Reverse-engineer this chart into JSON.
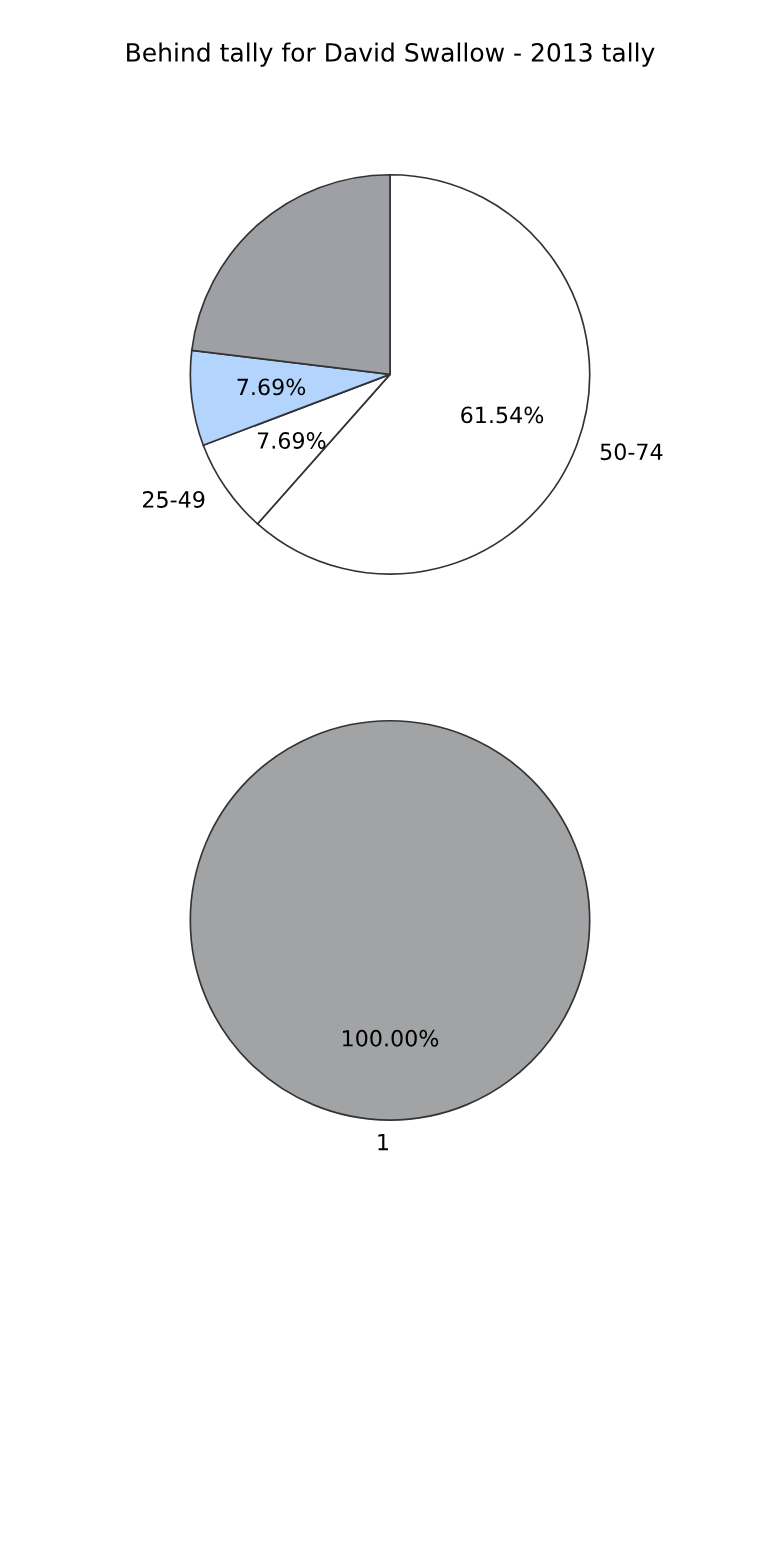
{
  "chart_data": [
    {
      "type": "pie",
      "title": "Behind tally for David Swallow - 2013 tally",
      "categories": [
        "50-74",
        "25-49",
        null,
        null
      ],
      "values": [
        61.54,
        7.69,
        7.69,
        23.08
      ],
      "colors": [
        "#ffffff",
        "#ffffff",
        "#b3d4fc",
        "#9ea0a5"
      ],
      "value_labels": [
        "61.54%",
        "7.69%",
        "7.69%",
        null
      ]
    },
    {
      "type": "pie",
      "categories": [
        "1"
      ],
      "values": [
        100
      ],
      "colors": [
        "#a2a3a5"
      ],
      "value_labels": [
        "100.00%"
      ]
    }
  ]
}
